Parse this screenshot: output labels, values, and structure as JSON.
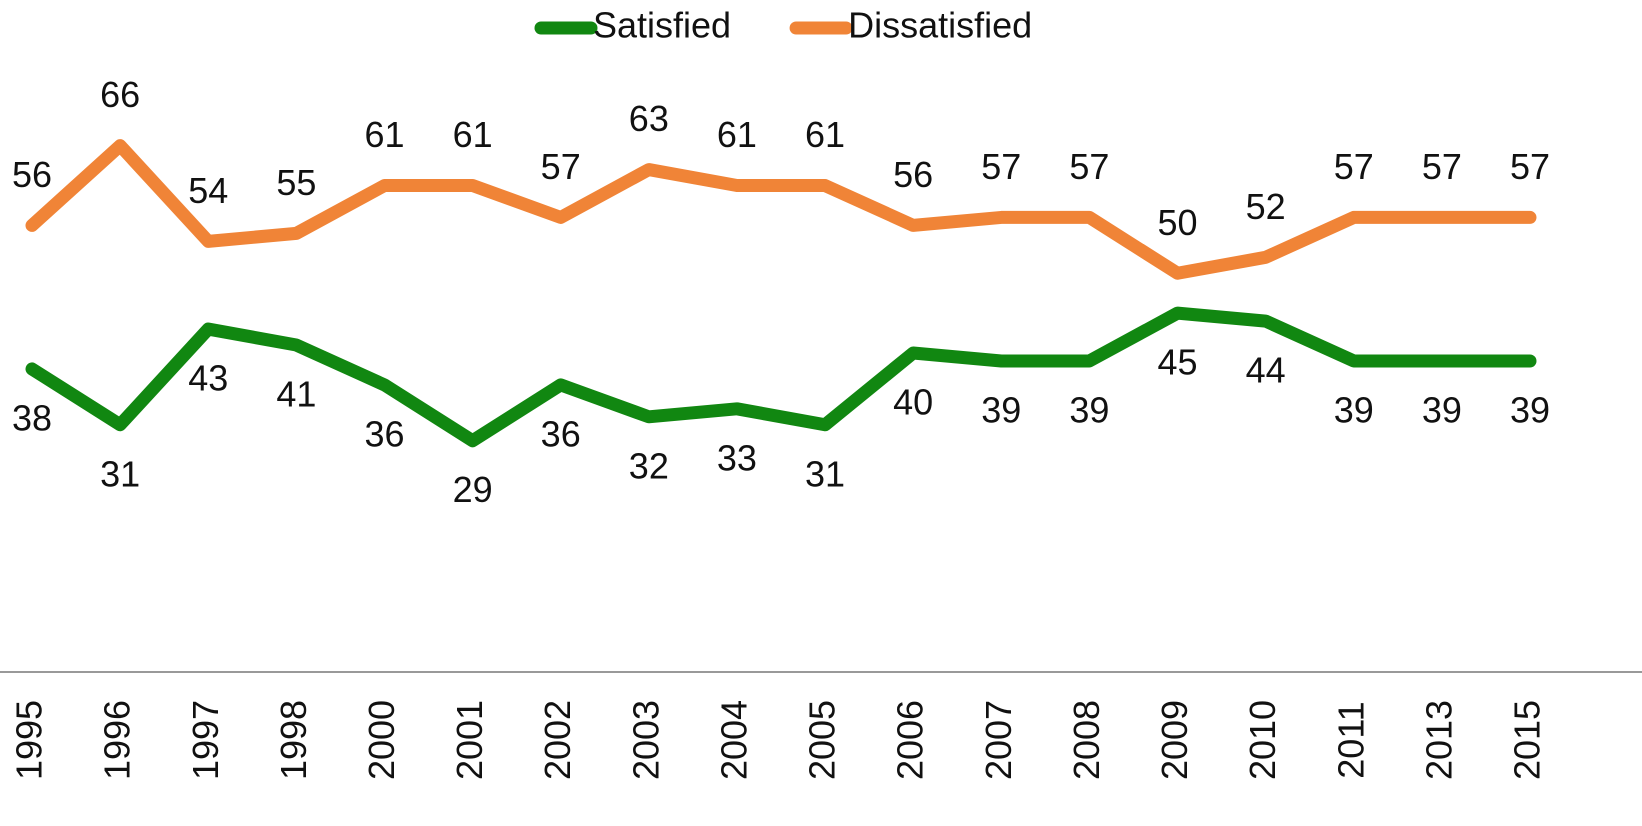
{
  "chart_data": {
    "type": "line",
    "categories": [
      "1995",
      "1996",
      "1997",
      "1998",
      "2000",
      "2001",
      "2002",
      "2003",
      "2004",
      "2005",
      "2006",
      "2007",
      "2008",
      "2009",
      "2010",
      "2011",
      "2013",
      "2015"
    ],
    "series": [
      {
        "name": "Satisfied",
        "color": "#118711",
        "values": [
          38,
          31,
          43,
          41,
          36,
          29,
          36,
          32,
          33,
          31,
          40,
          39,
          39,
          45,
          44,
          39,
          39,
          39
        ]
      },
      {
        "name": "Dissatisfied",
        "color": "#f08437",
        "values": [
          56,
          66,
          54,
          55,
          61,
          61,
          57,
          63,
          61,
          61,
          56,
          57,
          57,
          50,
          52,
          57,
          57,
          57
        ]
      }
    ],
    "ylim": [
      0,
      80
    ],
    "legend": "top"
  }
}
